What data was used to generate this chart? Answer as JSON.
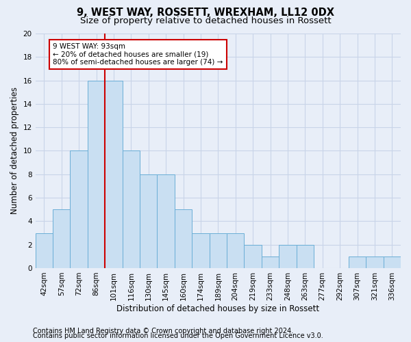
{
  "title1": "9, WEST WAY, ROSSETT, WREXHAM, LL12 0DX",
  "title2": "Size of property relative to detached houses in Rossett",
  "xlabel": "Distribution of detached houses by size in Rossett",
  "ylabel": "Number of detached properties",
  "categories": [
    "42sqm",
    "57sqm",
    "72sqm",
    "86sqm",
    "101sqm",
    "116sqm",
    "130sqm",
    "145sqm",
    "160sqm",
    "174sqm",
    "189sqm",
    "204sqm",
    "219sqm",
    "233sqm",
    "248sqm",
    "263sqm",
    "277sqm",
    "292sqm",
    "307sqm",
    "321sqm",
    "336sqm"
  ],
  "bar_heights": [
    3,
    5,
    10,
    16,
    16,
    10,
    8,
    8,
    5,
    3,
    3,
    3,
    2,
    1,
    2,
    2,
    0,
    0,
    1,
    1,
    1
  ],
  "bar_color": "#c9dff2",
  "bar_edge_color": "#6aaed6",
  "red_line_x": 3.5,
  "annotation_text": "9 WEST WAY: 93sqm\n← 20% of detached houses are smaller (19)\n80% of semi-detached houses are larger (74) →",
  "annotation_box_color": "#ffffff",
  "annotation_box_edge": "#cc0000",
  "red_line_color": "#cc0000",
  "ylim": [
    0,
    20
  ],
  "yticks": [
    0,
    2,
    4,
    6,
    8,
    10,
    12,
    14,
    16,
    18,
    20
  ],
  "grid_color": "#c8d4e8",
  "footer1": "Contains HM Land Registry data © Crown copyright and database right 2024.",
  "footer2": "Contains public sector information licensed under the Open Government Licence v3.0.",
  "title1_fontsize": 10.5,
  "title2_fontsize": 9.5,
  "xlabel_fontsize": 8.5,
  "ylabel_fontsize": 8.5,
  "tick_fontsize": 7.5,
  "footer_fontsize": 7,
  "bg_color": "#e8eef8"
}
